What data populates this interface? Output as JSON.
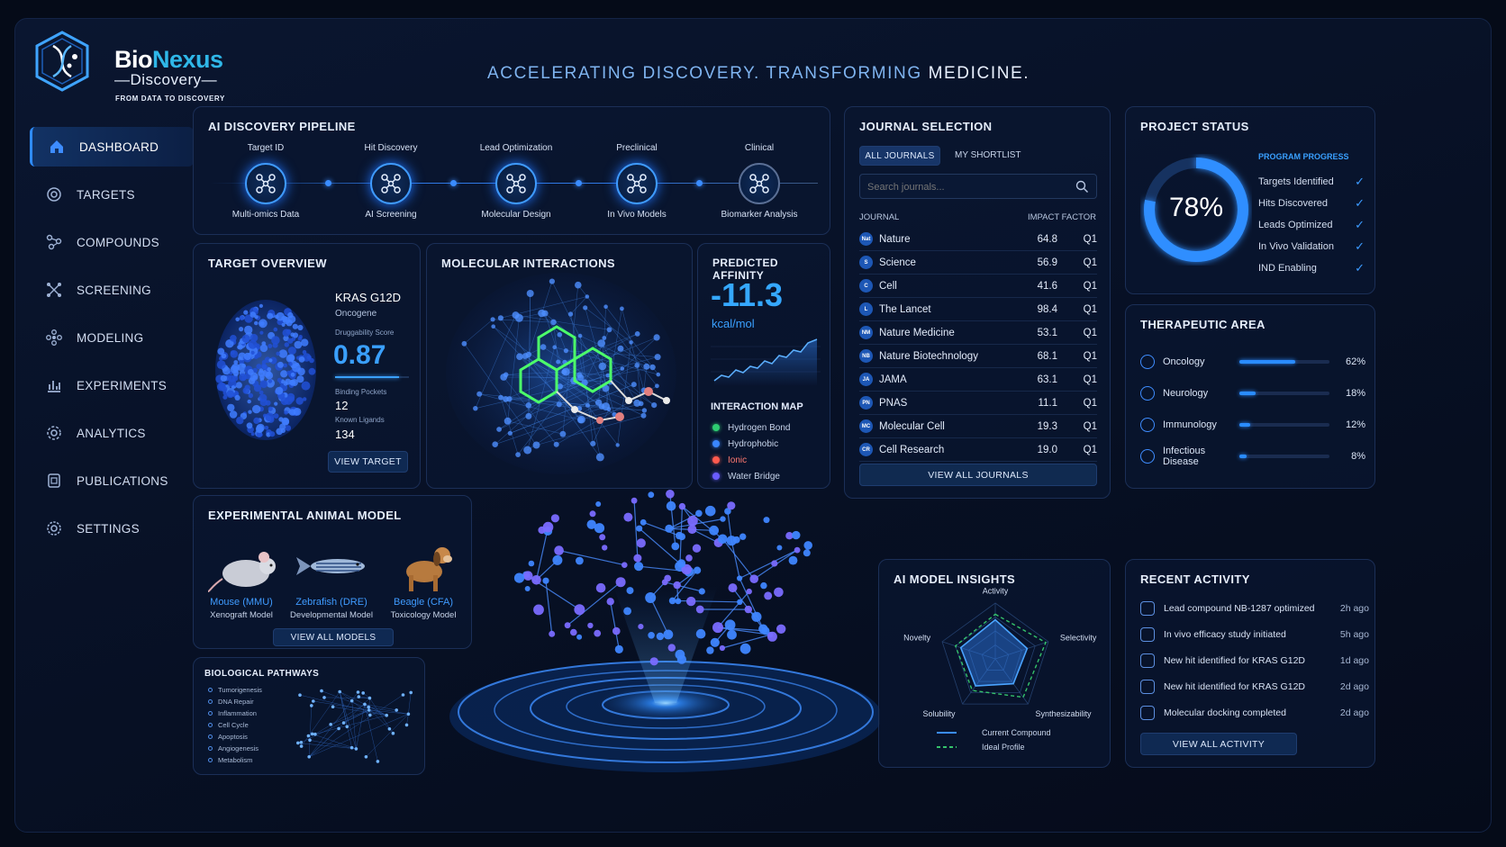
{
  "brand": {
    "name_a": "Bio",
    "name_b": "Nexus",
    "sub": "—Discovery—",
    "tagline": "FROM DATA TO DISCOVERY"
  },
  "header": {
    "tag_blue": "ACCELERATING DISCOVERY. TRANSFORMING",
    "tag_white": "MEDICINE."
  },
  "nav": [
    {
      "label": "DASHBOARD",
      "icon": "home-icon",
      "active": true
    },
    {
      "label": "TARGETS",
      "icon": "target-icon"
    },
    {
      "label": "COMPOUNDS",
      "icon": "molecule-icon"
    },
    {
      "label": "SCREENING",
      "icon": "screening-icon"
    },
    {
      "label": "MODELING",
      "icon": "modeling-icon"
    },
    {
      "label": "EXPERIMENTS",
      "icon": "chart-icon"
    },
    {
      "label": "ANALYTICS",
      "icon": "analytics-icon"
    },
    {
      "label": "PUBLICATIONS",
      "icon": "document-icon"
    },
    {
      "label": "SETTINGS",
      "icon": "gear-icon"
    }
  ],
  "pipeline": {
    "title": "AI DISCOVERY PIPELINE",
    "stages": [
      {
        "top": "Target ID",
        "bottom": "Multi-omics Data"
      },
      {
        "top": "Hit Discovery",
        "bottom": "AI Screening"
      },
      {
        "top": "Lead Optimization",
        "bottom": "Molecular Design"
      },
      {
        "top": "Preclinical",
        "bottom": "In Vivo Models"
      },
      {
        "top": "Clinical",
        "bottom": "Biomarker Analysis"
      }
    ]
  },
  "target": {
    "title": "TARGET OVERVIEW",
    "name": "KRAS G12D",
    "type": "Oncogene",
    "score_label": "Druggability Score",
    "score": "0.87",
    "score_fraction": 0.87,
    "pockets_label": "Binding Pockets",
    "pockets": "12",
    "ligands_label": "Known Ligands",
    "ligands": "134",
    "button": "VIEW TARGET"
  },
  "molecular": {
    "title": "MOLECULAR INTERACTIONS"
  },
  "affinity": {
    "title": "PREDICTED AFFINITY",
    "value": "-11.3",
    "unit": "kcal/mol",
    "map_title": "INTERACTION MAP",
    "legend": [
      {
        "label": "Hydrogen Bond",
        "color": "#2ecc71"
      },
      {
        "label": "Hydrophobic",
        "color": "#3a86ff"
      },
      {
        "label": "Ionic",
        "color": "#ff5a4e"
      },
      {
        "label": "Water Bridge",
        "color": "#6a5cff"
      }
    ]
  },
  "journals": {
    "title": "JOURNAL SELECTION",
    "tab_all": "ALL JOURNALS",
    "tab_short": "MY SHORTLIST",
    "search_placeholder": "Search journals...",
    "col_journal": "JOURNAL",
    "col_impact": "IMPACT FACTOR",
    "rows": [
      {
        "icon": "Nat",
        "name": "Nature",
        "impact": "64.8",
        "q": "Q1"
      },
      {
        "icon": "S",
        "name": "Science",
        "impact": "56.9",
        "q": "Q1"
      },
      {
        "icon": "C",
        "name": "Cell",
        "impact": "41.6",
        "q": "Q1"
      },
      {
        "icon": "L",
        "name": "The Lancet",
        "impact": "98.4",
        "q": "Q1"
      },
      {
        "icon": "NM",
        "name": "Nature Medicine",
        "impact": "53.1",
        "q": "Q1"
      },
      {
        "icon": "NB",
        "name": "Nature Biotechnology",
        "impact": "68.1",
        "q": "Q1"
      },
      {
        "icon": "JA",
        "name": "JAMA",
        "impact": "63.1",
        "q": "Q1"
      },
      {
        "icon": "PN",
        "name": "PNAS",
        "impact": "11.1",
        "q": "Q1"
      },
      {
        "icon": "MC",
        "name": "Molecular Cell",
        "impact": "19.3",
        "q": "Q1"
      },
      {
        "icon": "CR",
        "name": "Cell Research",
        "impact": "19.0",
        "q": "Q1"
      }
    ],
    "button": "VIEW ALL JOURNALS"
  },
  "project": {
    "title": "PROJECT STATUS",
    "percent": "78%",
    "fraction": 0.78,
    "progress_title": "PROGRAM PROGRESS",
    "items": [
      "Targets Identified",
      "Hits Discovered",
      "Leads Optimized",
      "In Vivo Validation",
      "IND Enabling"
    ]
  },
  "therapeutic": {
    "title": "THERAPEUTIC AREA",
    "areas": [
      {
        "name": "Oncology",
        "pct": "62%",
        "value": 62
      },
      {
        "name": "Neurology",
        "pct": "18%",
        "value": 18
      },
      {
        "name": "Immunology",
        "pct": "12%",
        "value": 12
      },
      {
        "name": "Infectious Disease",
        "pct": "8%",
        "value": 8
      }
    ]
  },
  "animal": {
    "title": "EXPERIMENTAL ANIMAL MODEL",
    "models": [
      {
        "name": "Mouse (MMU)",
        "desc": "Xenograft Model"
      },
      {
        "name": "Zebrafish (DRE)",
        "desc": "Developmental Model"
      },
      {
        "name": "Beagle (CFA)",
        "desc": "Toxicology Model"
      }
    ],
    "button": "VIEW ALL MODELS"
  },
  "pathways": {
    "title": "BIOLOGICAL PATHWAYS",
    "items": [
      "Tumorigenesis",
      "DNA Repair",
      "Inflammation",
      "Cell Cycle",
      "Apoptosis",
      "Angiogenesis",
      "Metabolism"
    ]
  },
  "insights": {
    "title": "AI MODEL INSIGHTS",
    "axes": [
      "Activity",
      "Selectivity",
      "Synthesizability",
      "Solubility",
      "Novelty"
    ],
    "current": [
      0.7,
      0.6,
      0.55,
      0.6,
      0.65
    ],
    "ideal": [
      0.8,
      0.95,
      0.85,
      0.7,
      0.75
    ],
    "legend_current": "Current Compound",
    "legend_ideal": "Ideal Profile"
  },
  "activity": {
    "title": "RECENT ACTIVITY",
    "rows": [
      {
        "text": "Lead compound NB-1287 optimized",
        "time": "2h ago"
      },
      {
        "text": "In vivo efficacy study initiated",
        "time": "5h ago"
      },
      {
        "text": "New hit identified for KRAS G12D",
        "time": "1d ago"
      },
      {
        "text": "New hit identified for KRAS G12D",
        "time": "2d ago"
      },
      {
        "text": "Molecular docking completed",
        "time": "2d ago"
      }
    ],
    "button": "VIEW ALL ACTIVITY"
  }
}
